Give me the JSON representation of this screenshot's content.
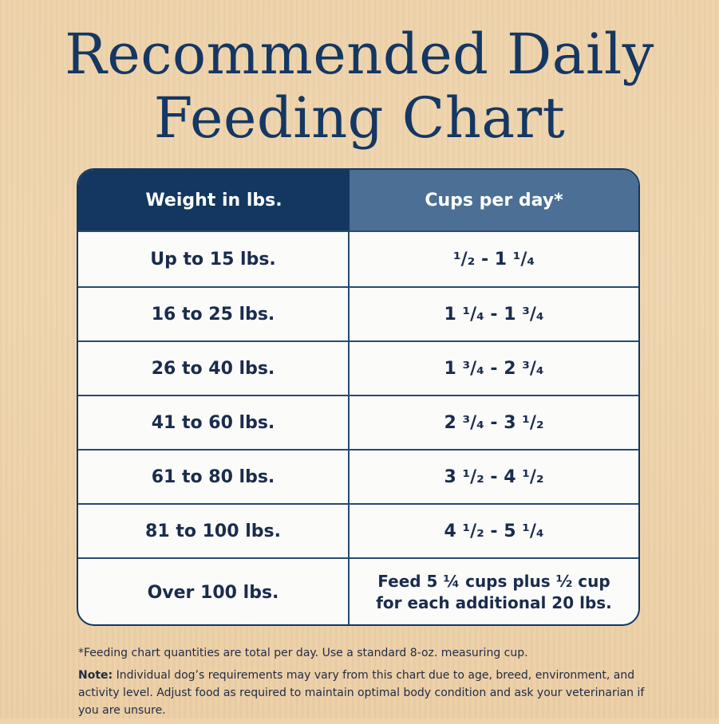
{
  "title": {
    "line1": "Recommended Daily",
    "line2": "Feeding Chart"
  },
  "colors": {
    "header_left": "#133761",
    "header_right": "#4b6f95",
    "title": "#143763",
    "border": "#133761"
  },
  "chart_data": {
    "type": "table",
    "columns": [
      "Weight in lbs.",
      "Cups per day*"
    ],
    "rows": [
      [
        "Up to 15 lbs.",
        "¹/₂ - 1 ¹/₄"
      ],
      [
        "16 to 25 lbs.",
        "1 ¹/₄ - 1 ³/₄"
      ],
      [
        "26 to 40 lbs.",
        "1 ³/₄ - 2 ³/₄"
      ],
      [
        "41 to 60 lbs.",
        "2 ³/₄ - 3 ¹/₂"
      ],
      [
        "61 to 80 lbs.",
        "3 ¹/₂ - 4 ¹/₂"
      ],
      [
        "81 to 100 lbs.",
        "4 ¹/₂ - 5 ¹/₄"
      ],
      [
        "Over 100 lbs.",
        "Feed 5 ¼ cups plus ½ cup for each additional 20 lbs."
      ]
    ]
  },
  "footnote": "*Feeding chart quantities are total per day. Use a standard 8-oz. measuring cup.",
  "note": {
    "label": "Note:",
    "text": " Individual dog’s requirements may vary from this chart due to age, breed, environment, and activity level. Adjust food as required to maintain optimal body condition and ask your veterinarian if you are unsure."
  }
}
